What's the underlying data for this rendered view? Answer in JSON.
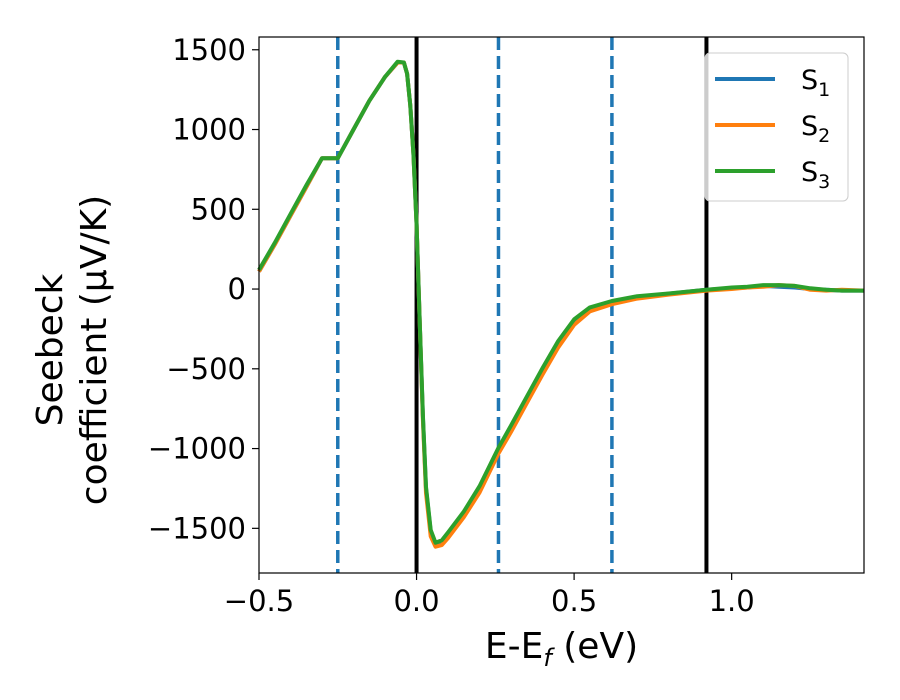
{
  "chart_data": {
    "type": "line",
    "title": "",
    "xlabel": "E-E_f (eV)",
    "xlabel_parts": {
      "main": "E-E",
      "sub": "f",
      "tail": " (eV)"
    },
    "ylabel_line1": "Seebeck",
    "ylabel_line2": "coefficient  (μV/K)",
    "xlim": [
      -0.5,
      1.42
    ],
    "ylim": [
      -1780,
      1580
    ],
    "xticks": [
      -0.5,
      0.0,
      0.5,
      1.0
    ],
    "xtick_labels": [
      "−0.5",
      "0.0",
      "0.5",
      "1.0"
    ],
    "yticks": [
      1500,
      1000,
      500,
      0,
      -500,
      -1000,
      -1500
    ],
    "ytick_labels": [
      "1500",
      "1000",
      "500",
      "0",
      "−500",
      "−1000",
      "−1500"
    ],
    "grid": false,
    "legend": {
      "position": "top-right",
      "entries": [
        "S1",
        "S2",
        "S3"
      ]
    },
    "vlines": {
      "solid_black": [
        0.0,
        0.92
      ],
      "dashed_blue": [
        -0.25,
        0.26,
        0.62
      ]
    },
    "series": [
      {
        "name": "S1",
        "label_main": "S",
        "label_sub": "1",
        "color": "#1f77b4",
        "points": [
          [
            -0.5,
            110
          ],
          [
            -0.45,
            280
          ],
          [
            -0.4,
            460
          ],
          [
            -0.35,
            640
          ],
          [
            -0.3,
            820
          ],
          [
            -0.25,
            820
          ],
          [
            -0.2,
            1000
          ],
          [
            -0.15,
            1180
          ],
          [
            -0.1,
            1330
          ],
          [
            -0.06,
            1420
          ],
          [
            -0.04,
            1420
          ],
          [
            -0.03,
            1350
          ],
          [
            -0.02,
            1150
          ],
          [
            -0.01,
            850
          ],
          [
            0.0,
            400
          ],
          [
            0.01,
            -200
          ],
          [
            0.02,
            -800
          ],
          [
            0.03,
            -1250
          ],
          [
            0.045,
            -1520
          ],
          [
            0.06,
            -1600
          ],
          [
            0.08,
            -1590
          ],
          [
            0.1,
            -1540
          ],
          [
            0.15,
            -1410
          ],
          [
            0.2,
            -1250
          ],
          [
            0.26,
            -1010
          ],
          [
            0.3,
            -870
          ],
          [
            0.35,
            -690
          ],
          [
            0.4,
            -510
          ],
          [
            0.45,
            -340
          ],
          [
            0.5,
            -200
          ],
          [
            0.55,
            -120
          ],
          [
            0.62,
            -80
          ],
          [
            0.7,
            -50
          ],
          [
            0.8,
            -30
          ],
          [
            0.92,
            -5
          ],
          [
            1.0,
            5
          ],
          [
            1.05,
            10
          ],
          [
            1.1,
            20
          ],
          [
            1.15,
            15
          ],
          [
            1.2,
            10
          ],
          [
            1.25,
            0
          ],
          [
            1.3,
            -5
          ],
          [
            1.35,
            -10
          ],
          [
            1.42,
            -10
          ]
        ]
      },
      {
        "name": "S2",
        "label_main": "S",
        "label_sub": "2",
        "color": "#ff7f0e",
        "points": [
          [
            -0.5,
            110
          ],
          [
            -0.45,
            280
          ],
          [
            -0.4,
            460
          ],
          [
            -0.35,
            640
          ],
          [
            -0.3,
            820
          ],
          [
            -0.25,
            820
          ],
          [
            -0.2,
            1000
          ],
          [
            -0.15,
            1180
          ],
          [
            -0.1,
            1330
          ],
          [
            -0.06,
            1420
          ],
          [
            -0.04,
            1420
          ],
          [
            -0.03,
            1350
          ],
          [
            -0.02,
            1150
          ],
          [
            -0.01,
            850
          ],
          [
            0.0,
            400
          ],
          [
            0.01,
            -200
          ],
          [
            0.02,
            -820
          ],
          [
            0.03,
            -1280
          ],
          [
            0.045,
            -1550
          ],
          [
            0.06,
            -1615
          ],
          [
            0.08,
            -1605
          ],
          [
            0.1,
            -1560
          ],
          [
            0.15,
            -1430
          ],
          [
            0.2,
            -1275
          ],
          [
            0.26,
            -1030
          ],
          [
            0.3,
            -895
          ],
          [
            0.35,
            -715
          ],
          [
            0.4,
            -535
          ],
          [
            0.45,
            -365
          ],
          [
            0.5,
            -225
          ],
          [
            0.55,
            -140
          ],
          [
            0.62,
            -95
          ],
          [
            0.7,
            -60
          ],
          [
            0.8,
            -35
          ],
          [
            0.92,
            -10
          ],
          [
            1.0,
            0
          ],
          [
            1.05,
            10
          ],
          [
            1.1,
            15
          ],
          [
            1.15,
            25
          ],
          [
            1.2,
            20
          ],
          [
            1.25,
            -5
          ],
          [
            1.3,
            -10
          ],
          [
            1.35,
            -5
          ],
          [
            1.42,
            -10
          ]
        ]
      },
      {
        "name": "S3",
        "label_main": "S",
        "label_sub": "3",
        "color": "#2ca02c",
        "points": [
          [
            -0.5,
            120
          ],
          [
            -0.45,
            290
          ],
          [
            -0.4,
            470
          ],
          [
            -0.35,
            650
          ],
          [
            -0.3,
            820
          ],
          [
            -0.25,
            820
          ],
          [
            -0.2,
            1000
          ],
          [
            -0.15,
            1180
          ],
          [
            -0.1,
            1330
          ],
          [
            -0.06,
            1425
          ],
          [
            -0.04,
            1420
          ],
          [
            -0.03,
            1350
          ],
          [
            -0.02,
            1150
          ],
          [
            -0.01,
            850
          ],
          [
            0.0,
            400
          ],
          [
            0.01,
            -200
          ],
          [
            0.02,
            -790
          ],
          [
            0.03,
            -1240
          ],
          [
            0.045,
            -1510
          ],
          [
            0.06,
            -1590
          ],
          [
            0.08,
            -1575
          ],
          [
            0.1,
            -1525
          ],
          [
            0.15,
            -1395
          ],
          [
            0.2,
            -1235
          ],
          [
            0.26,
            -995
          ],
          [
            0.3,
            -855
          ],
          [
            0.35,
            -675
          ],
          [
            0.4,
            -495
          ],
          [
            0.45,
            -325
          ],
          [
            0.5,
            -190
          ],
          [
            0.55,
            -115
          ],
          [
            0.62,
            -75
          ],
          [
            0.7,
            -45
          ],
          [
            0.8,
            -28
          ],
          [
            0.92,
            -5
          ],
          [
            1.0,
            10
          ],
          [
            1.05,
            15
          ],
          [
            1.1,
            25
          ],
          [
            1.15,
            25
          ],
          [
            1.2,
            20
          ],
          [
            1.25,
            5
          ],
          [
            1.3,
            -5
          ],
          [
            1.35,
            -10
          ],
          [
            1.42,
            -10
          ]
        ]
      }
    ]
  }
}
